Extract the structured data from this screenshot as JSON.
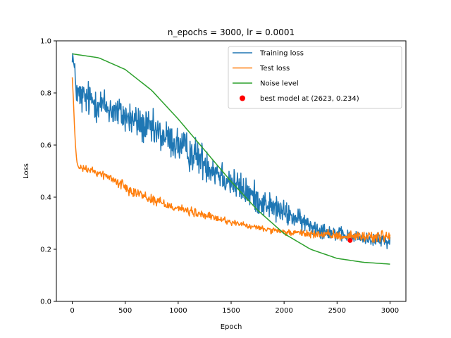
{
  "chart_data": {
    "type": "line",
    "title": "n_epochs = 3000, lr = 0.0001",
    "xlabel": "Epoch",
    "ylabel": "Loss",
    "xlim": [
      -150,
      3150
    ],
    "ylim": [
      0.0,
      1.0
    ],
    "xticks": [
      0,
      500,
      1000,
      1500,
      2000,
      2500,
      3000
    ],
    "yticks": [
      0.0,
      0.2,
      0.4,
      0.6,
      0.8,
      1.0
    ],
    "xtick_labels": [
      "0",
      "500",
      "1000",
      "1500",
      "2000",
      "2500",
      "3000"
    ],
    "ytick_labels": [
      "0.0",
      "0.2",
      "0.4",
      "0.6",
      "0.8",
      "1.0"
    ],
    "grid": false,
    "legend_position": "top-right",
    "series": [
      {
        "name": "Training loss",
        "color": "#1f77b4",
        "style": "noisy",
        "x": [
          0,
          25,
          50,
          100,
          200,
          300,
          400,
          500,
          600,
          700,
          800,
          900,
          1000,
          1100,
          1200,
          1300,
          1400,
          1500,
          1600,
          1700,
          1800,
          1900,
          2000,
          2100,
          2200,
          2300,
          2400,
          2500,
          2600,
          2700,
          2800,
          2900,
          3000
        ],
        "y": [
          0.96,
          0.86,
          0.79,
          0.78,
          0.77,
          0.75,
          0.73,
          0.71,
          0.69,
          0.665,
          0.645,
          0.625,
          0.6,
          0.575,
          0.55,
          0.52,
          0.49,
          0.46,
          0.43,
          0.405,
          0.38,
          0.36,
          0.34,
          0.32,
          0.3,
          0.285,
          0.27,
          0.26,
          0.25,
          0.245,
          0.24,
          0.235,
          0.23
        ],
        "noise": [
          0.04,
          0.05,
          0.06,
          0.06,
          0.06,
          0.06,
          0.06,
          0.06,
          0.06,
          0.06,
          0.06,
          0.06,
          0.06,
          0.06,
          0.06,
          0.06,
          0.055,
          0.055,
          0.05,
          0.05,
          0.045,
          0.045,
          0.04,
          0.035,
          0.03,
          0.03,
          0.025,
          0.025,
          0.02,
          0.02,
          0.02,
          0.02,
          0.02
        ]
      },
      {
        "name": "Test loss",
        "color": "#ff7f0e",
        "style": "noisy",
        "x": [
          0,
          10,
          20,
          30,
          40,
          50,
          60,
          100,
          200,
          300,
          400,
          500,
          600,
          700,
          800,
          900,
          1000,
          1100,
          1200,
          1300,
          1400,
          1500,
          1600,
          1700,
          1800,
          1900,
          2000,
          2200,
          2400,
          2600,
          2800,
          3000
        ],
        "y": [
          0.86,
          0.78,
          0.68,
          0.6,
          0.55,
          0.52,
          0.515,
          0.51,
          0.5,
          0.485,
          0.465,
          0.44,
          0.42,
          0.4,
          0.385,
          0.37,
          0.36,
          0.345,
          0.335,
          0.325,
          0.315,
          0.305,
          0.295,
          0.285,
          0.28,
          0.27,
          0.265,
          0.26,
          0.255,
          0.25,
          0.25,
          0.25
        ],
        "noise": [
          0.0,
          0.0,
          0.0,
          0.0,
          0.0,
          0.005,
          0.008,
          0.01,
          0.012,
          0.014,
          0.016,
          0.018,
          0.018,
          0.018,
          0.018,
          0.018,
          0.016,
          0.015,
          0.014,
          0.013,
          0.012,
          0.011,
          0.01,
          0.01,
          0.01,
          0.01,
          0.01,
          0.012,
          0.014,
          0.016,
          0.018,
          0.02
        ]
      },
      {
        "name": "Noise level",
        "color": "#2ca02c",
        "style": "smooth",
        "x": [
          0,
          250,
          500,
          750,
          1000,
          1250,
          1500,
          1750,
          2000,
          2250,
          2500,
          2750,
          3000
        ],
        "y": [
          0.95,
          0.935,
          0.89,
          0.81,
          0.7,
          0.58,
          0.46,
          0.35,
          0.26,
          0.2,
          0.165,
          0.15,
          0.143
        ]
      }
    ],
    "markers": [
      {
        "name": "best model at (2623, 0.234)",
        "x": 2623,
        "y": 0.234,
        "color": "#ff0000"
      }
    ]
  }
}
